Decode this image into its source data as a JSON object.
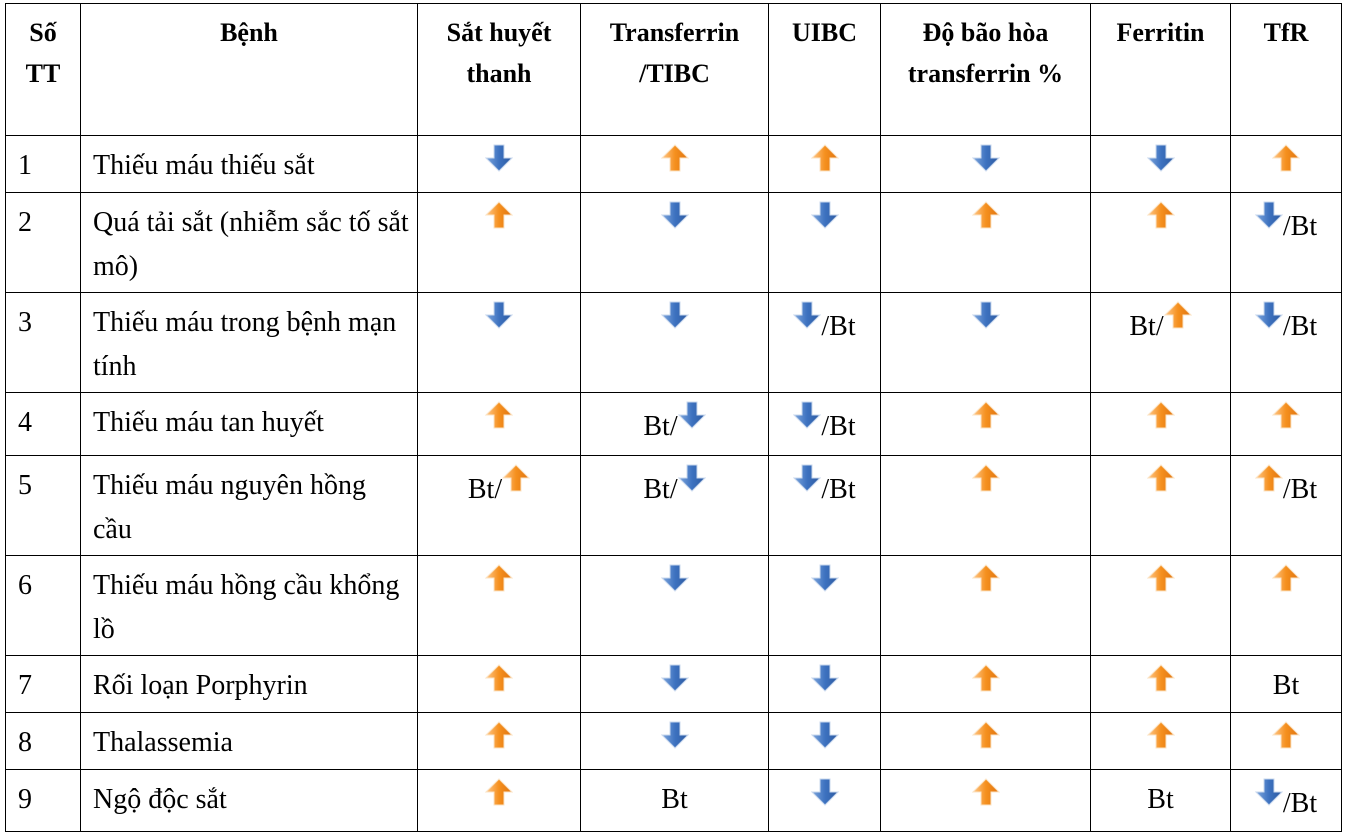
{
  "table": {
    "header": [
      "Số TT",
      "Bệnh",
      "Sắt huyết thanh",
      "Transferrin /TIBC",
      "UIBC",
      "Độ bão hòa transferrin %",
      "Ferritin",
      "TfR"
    ],
    "rows": [
      [
        "1",
        "Thiếu máu thiếu sắt",
        "↓",
        "↑",
        "↑",
        "↓",
        "↓",
        "↑"
      ],
      [
        "2",
        "Quá tải sắt (nhiễm sắc tố sắt mô)",
        "↑",
        "↓",
        "↓",
        "↑",
        "↑",
        "↓/Bt"
      ],
      [
        "3",
        "Thiếu máu trong bệnh mạn tính",
        "↓",
        "↓",
        "↓/Bt",
        "↓",
        "Bt/↑",
        "↓/Bt"
      ],
      [
        "4",
        "Thiếu máu tan huyết",
        "↑",
        "Bt/↓",
        "↓/Bt",
        "↑",
        "↑",
        "↑"
      ],
      [
        "5",
        "Thiếu máu nguyên hồng cầu",
        "Bt/↑",
        "Bt/↓",
        "↓/Bt",
        "↑",
        "↑",
        "↑/Bt"
      ],
      [
        "6",
        "Thiếu máu hồng cầu khổng lồ",
        "↑",
        "↓",
        "↓",
        "↑",
        "↑",
        "↑"
      ],
      [
        "7",
        "Rối loạn Porphyrin",
        "↑",
        "↓",
        "↓",
        "↑",
        "↑",
        "Bt"
      ],
      [
        "8",
        "Thalassemia",
        "↑",
        "↓",
        "↓",
        "↑",
        "↑",
        "↑"
      ],
      [
        "9",
        "Ngộ độc sắt",
        "↑",
        "Bt",
        "↓",
        "↑",
        "Bt",
        "↓/Bt"
      ]
    ]
  }
}
